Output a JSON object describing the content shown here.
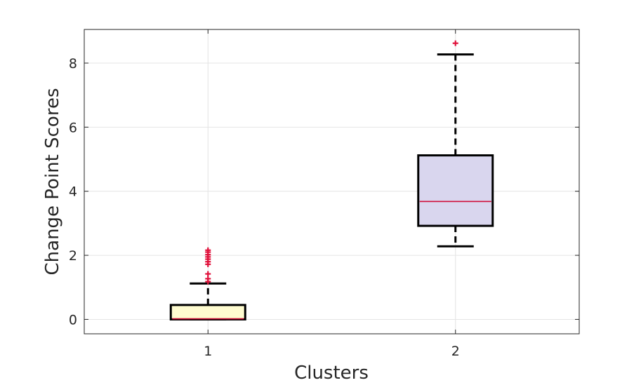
{
  "chart_data": {
    "type": "box",
    "xlabel": "Clusters",
    "ylabel": "Change Point Scores",
    "ylim": [
      -0.45,
      9.05
    ],
    "yticks": [
      0,
      2,
      4,
      6,
      8
    ],
    "categories": [
      "1",
      "2"
    ],
    "grid": true,
    "boxes": [
      {
        "category": "1",
        "q1": 0.0,
        "median": 0.02,
        "q3": 0.45,
        "whisker_low": 0.0,
        "whisker_high": 1.12,
        "outliers": [
          1.18,
          1.27,
          1.42,
          1.72,
          1.8,
          1.88,
          1.95,
          2.02,
          2.1,
          2.16
        ],
        "fill": "#fffcd0",
        "median_color": "#d0103a"
      },
      {
        "category": "2",
        "q1": 2.92,
        "median": 3.68,
        "q3": 5.12,
        "whisker_low": 2.28,
        "whisker_high": 8.27,
        "outliers": [
          8.62
        ],
        "fill": "#d9d6ee",
        "median_color": "#d0103a"
      }
    ],
    "outlier_color": "#e0103a"
  }
}
